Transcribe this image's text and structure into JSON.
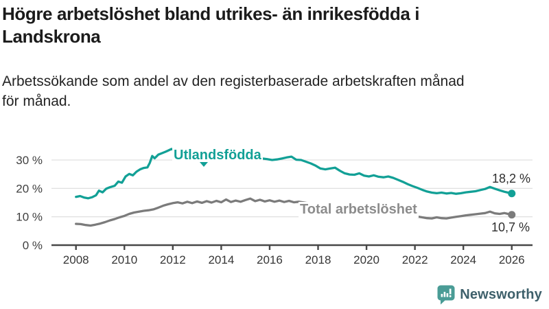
{
  "header": {
    "title": "Högre arbetslöshet bland utrikes- än inrikesfödda i Landskrona",
    "subtitle_line1": "Arbetssökande som andel av den registerbaserade arbetskraften månad",
    "subtitle_line2": "för månad."
  },
  "chart_data": {
    "type": "line",
    "title": "Högre arbetslöshet bland utrikes- än inrikesfödda i Landskrona",
    "subtitle": "Arbetssökande som andel av den registerbaserade arbetskraften månad för månad.",
    "grid": "horizontal",
    "legend": "inline-labels",
    "x_axis": {
      "ticks": [
        2008,
        2010,
        2012,
        2014,
        2016,
        2018,
        2020,
        2022,
        2024,
        2026
      ],
      "range": [
        2007.0,
        2026.8
      ]
    },
    "y_axis": {
      "ticks": [
        0,
        10,
        20,
        30
      ],
      "tick_labels": [
        "0 %",
        "10 %",
        "20 %",
        "30 %"
      ],
      "range": [
        0,
        35
      ],
      "unit": "%"
    },
    "series": [
      {
        "name": "Utlandsfödda",
        "color": "#12a096",
        "label_color": "#12a096",
        "end_value": 18.2,
        "end_label": "18,2 %",
        "points": [
          [
            2008.0,
            17.0
          ],
          [
            2008.17,
            17.3
          ],
          [
            2008.33,
            16.8
          ],
          [
            2008.5,
            16.5
          ],
          [
            2008.67,
            16.9
          ],
          [
            2008.83,
            17.6
          ],
          [
            2008.95,
            19.2
          ],
          [
            2009.1,
            18.6
          ],
          [
            2009.25,
            19.9
          ],
          [
            2009.4,
            20.4
          ],
          [
            2009.6,
            20.9
          ],
          [
            2009.75,
            22.4
          ],
          [
            2009.9,
            22.0
          ],
          [
            2010.05,
            24.2
          ],
          [
            2010.2,
            25.1
          ],
          [
            2010.35,
            24.6
          ],
          [
            2010.5,
            25.9
          ],
          [
            2010.65,
            26.7
          ],
          [
            2010.8,
            27.2
          ],
          [
            2010.95,
            27.4
          ],
          [
            2011.05,
            29.0
          ],
          [
            2011.15,
            31.4
          ],
          [
            2011.25,
            30.6
          ],
          [
            2011.4,
            31.9
          ],
          [
            2011.55,
            32.4
          ],
          [
            2011.7,
            32.9
          ],
          [
            2011.8,
            33.3
          ],
          [
            2011.95,
            33.9
          ],
          [
            2012.1,
            33.2
          ],
          [
            2012.3,
            32.2
          ],
          [
            2012.5,
            31.7
          ],
          [
            2012.7,
            32.5
          ],
          [
            2012.9,
            32.1
          ],
          [
            2013.1,
            31.6
          ],
          [
            2013.3,
            32.3
          ],
          [
            2013.5,
            31.9
          ],
          [
            2013.7,
            31.4
          ],
          [
            2013.9,
            31.9
          ],
          [
            2014.1,
            31.3
          ],
          [
            2014.3,
            31.7
          ],
          [
            2014.5,
            31.1
          ],
          [
            2014.7,
            31.5
          ],
          [
            2014.9,
            30.9
          ],
          [
            2015.1,
            31.2
          ],
          [
            2015.3,
            30.7
          ],
          [
            2015.5,
            31.0
          ],
          [
            2015.7,
            30.5
          ],
          [
            2015.9,
            30.3
          ],
          [
            2016.1,
            30.0
          ],
          [
            2016.3,
            30.2
          ],
          [
            2016.5,
            30.5
          ],
          [
            2016.7,
            30.9
          ],
          [
            2016.9,
            31.2
          ],
          [
            2017.1,
            30.1
          ],
          [
            2017.3,
            30.0
          ],
          [
            2017.5,
            29.4
          ],
          [
            2017.7,
            28.8
          ],
          [
            2017.9,
            28.0
          ],
          [
            2018.1,
            27.0
          ],
          [
            2018.3,
            26.7
          ],
          [
            2018.5,
            27.0
          ],
          [
            2018.7,
            27.3
          ],
          [
            2018.9,
            26.2
          ],
          [
            2019.1,
            25.3
          ],
          [
            2019.3,
            24.9
          ],
          [
            2019.5,
            24.8
          ],
          [
            2019.7,
            25.3
          ],
          [
            2019.9,
            24.5
          ],
          [
            2020.1,
            24.2
          ],
          [
            2020.3,
            24.6
          ],
          [
            2020.5,
            24.1
          ],
          [
            2020.7,
            23.9
          ],
          [
            2020.9,
            24.2
          ],
          [
            2021.1,
            23.7
          ],
          [
            2021.3,
            23.0
          ],
          [
            2021.5,
            22.3
          ],
          [
            2021.7,
            21.5
          ],
          [
            2021.9,
            20.8
          ],
          [
            2022.1,
            20.2
          ],
          [
            2022.3,
            19.5
          ],
          [
            2022.5,
            18.9
          ],
          [
            2022.7,
            18.5
          ],
          [
            2022.9,
            18.3
          ],
          [
            2023.1,
            18.5
          ],
          [
            2023.3,
            18.2
          ],
          [
            2023.5,
            18.4
          ],
          [
            2023.7,
            18.1
          ],
          [
            2023.9,
            18.3
          ],
          [
            2024.1,
            18.6
          ],
          [
            2024.3,
            18.8
          ],
          [
            2024.5,
            19.0
          ],
          [
            2024.7,
            19.4
          ],
          [
            2024.9,
            19.8
          ],
          [
            2025.1,
            20.5
          ],
          [
            2025.3,
            19.9
          ],
          [
            2025.5,
            19.3
          ],
          [
            2025.7,
            18.8
          ],
          [
            2025.85,
            18.5
          ],
          [
            2026.0,
            18.2
          ]
        ]
      },
      {
        "name": "Total arbetslöshet",
        "color": "#7b7b7b",
        "label_color": "#8c8c8c",
        "end_value": 10.7,
        "end_label": "10,7 %",
        "points": [
          [
            2008.0,
            7.5
          ],
          [
            2008.2,
            7.4
          ],
          [
            2008.4,
            7.1
          ],
          [
            2008.6,
            6.9
          ],
          [
            2008.8,
            7.2
          ],
          [
            2009.0,
            7.6
          ],
          [
            2009.2,
            8.1
          ],
          [
            2009.4,
            8.7
          ],
          [
            2009.6,
            9.2
          ],
          [
            2009.8,
            9.8
          ],
          [
            2010.0,
            10.3
          ],
          [
            2010.2,
            11.0
          ],
          [
            2010.4,
            11.5
          ],
          [
            2010.6,
            11.8
          ],
          [
            2010.8,
            12.1
          ],
          [
            2011.0,
            12.3
          ],
          [
            2011.2,
            12.6
          ],
          [
            2011.4,
            13.2
          ],
          [
            2011.6,
            13.9
          ],
          [
            2011.8,
            14.4
          ],
          [
            2012.0,
            14.8
          ],
          [
            2012.2,
            15.1
          ],
          [
            2012.4,
            14.7
          ],
          [
            2012.6,
            15.3
          ],
          [
            2012.8,
            14.8
          ],
          [
            2013.0,
            15.4
          ],
          [
            2013.2,
            14.9
          ],
          [
            2013.4,
            15.5
          ],
          [
            2013.6,
            15.0
          ],
          [
            2013.8,
            15.6
          ],
          [
            2014.0,
            15.1
          ],
          [
            2014.2,
            16.1
          ],
          [
            2014.4,
            15.2
          ],
          [
            2014.6,
            15.7
          ],
          [
            2014.8,
            15.3
          ],
          [
            2015.0,
            15.9
          ],
          [
            2015.2,
            16.4
          ],
          [
            2015.4,
            15.5
          ],
          [
            2015.6,
            16.0
          ],
          [
            2015.8,
            15.4
          ],
          [
            2016.0,
            15.8
          ],
          [
            2016.2,
            15.3
          ],
          [
            2016.4,
            15.7
          ],
          [
            2016.6,
            15.2
          ],
          [
            2016.8,
            15.6
          ],
          [
            2017.0,
            15.1
          ],
          [
            2017.2,
            15.3
          ],
          [
            2017.5,
            14.9
          ],
          [
            2017.8,
            14.6
          ],
          [
            2018.1,
            14.2
          ],
          [
            2018.4,
            13.8
          ],
          [
            2018.7,
            13.4
          ],
          [
            2019.0,
            13.0
          ],
          [
            2019.3,
            12.6
          ],
          [
            2019.6,
            12.3
          ],
          [
            2019.9,
            12.1
          ],
          [
            2020.2,
            12.5
          ],
          [
            2020.5,
            12.8
          ],
          [
            2020.8,
            12.4
          ],
          [
            2021.1,
            11.8
          ],
          [
            2021.4,
            11.2
          ],
          [
            2021.7,
            10.7
          ],
          [
            2022.0,
            10.2
          ],
          [
            2022.3,
            9.8
          ],
          [
            2022.5,
            9.5
          ],
          [
            2022.7,
            9.4
          ],
          [
            2022.9,
            9.8
          ],
          [
            2023.1,
            9.5
          ],
          [
            2023.3,
            9.4
          ],
          [
            2023.5,
            9.7
          ],
          [
            2023.7,
            10.0
          ],
          [
            2023.9,
            10.2
          ],
          [
            2024.1,
            10.5
          ],
          [
            2024.3,
            10.7
          ],
          [
            2024.5,
            10.9
          ],
          [
            2024.7,
            11.1
          ],
          [
            2024.9,
            11.3
          ],
          [
            2025.1,
            11.8
          ],
          [
            2025.3,
            11.2
          ],
          [
            2025.5,
            11.0
          ],
          [
            2025.7,
            11.3
          ],
          [
            2025.85,
            11.0
          ],
          [
            2026.0,
            10.7
          ]
        ]
      }
    ]
  },
  "footer": {
    "brand": "Newsworthy",
    "brand_color": "#4a9c96",
    "icon_glyph_color": "#ffffff",
    "text_color": "#3e606b"
  }
}
